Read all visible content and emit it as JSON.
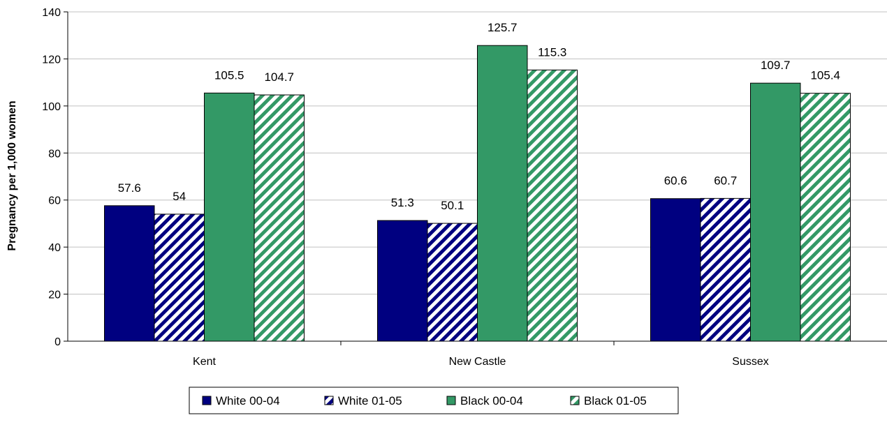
{
  "chart_data": {
    "type": "bar",
    "title": "",
    "xlabel": "",
    "ylabel": "Pregnancy per 1,000 women",
    "ylim": [
      0,
      140
    ],
    "yticks": [
      0,
      20,
      40,
      60,
      80,
      100,
      120,
      140
    ],
    "categories": [
      "Kent",
      "New Castle",
      "Sussex"
    ],
    "series": [
      {
        "name": "White 00-04",
        "values": [
          57.6,
          51.3,
          60.6
        ],
        "labels": [
          "57.6",
          "51.3",
          "60.6"
        ],
        "color": "#000080",
        "pattern": "solid"
      },
      {
        "name": "White 01-05",
        "values": [
          54,
          50.1,
          60.7
        ],
        "labels": [
          "54",
          "50.1",
          "60.7"
        ],
        "color": "#000080",
        "pattern": "diagonal-stripes"
      },
      {
        "name": "Black 00-04",
        "values": [
          105.5,
          125.7,
          109.7
        ],
        "labels": [
          "105.5",
          "125.7",
          "109.7"
        ],
        "color": "#339966",
        "pattern": "solid"
      },
      {
        "name": "Black 01-05",
        "values": [
          104.7,
          115.3,
          105.4
        ],
        "labels": [
          "104.7",
          "115.3",
          "105.4"
        ],
        "color": "#339966",
        "pattern": "diagonal-stripes"
      }
    ],
    "grid": true,
    "legend_position": "bottom"
  }
}
